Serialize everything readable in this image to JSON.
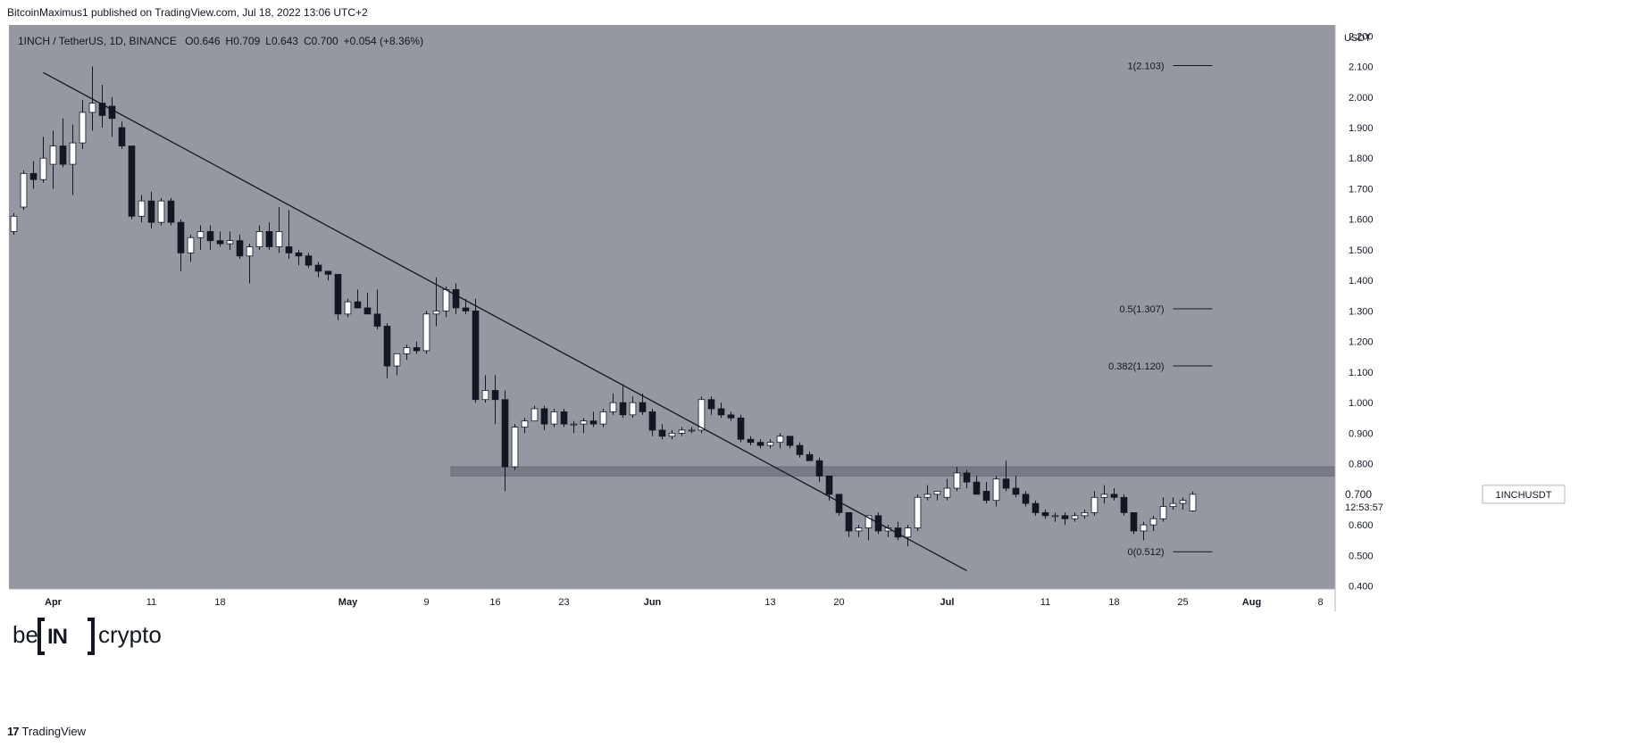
{
  "header": {
    "published": "BitcoinMaximus1 published on TradingView.com, Jul 18, 2022 13:06 UTC+2"
  },
  "footer": {
    "brand": "TradingView",
    "logo_glyph": "17"
  },
  "watermark": {
    "left": "be",
    "middle": "IN",
    "right": "crypto"
  },
  "colors": {
    "plot_background": "#9598a1",
    "candle_up": "#ffffff",
    "candle_down": "#131722",
    "wick": "#131722",
    "trendline": "#131722",
    "resistance_zone": "#787b86",
    "axis_background": "#ffffff",
    "text": "#131722"
  },
  "chart_data": {
    "type": "candlestick",
    "symbol_title": "1INCH / TetherUS, 1D, BINANCE",
    "ohlc_readout": [
      {
        "key": "O",
        "value": "0.646"
      },
      {
        "key": "H",
        "value": "0.709"
      },
      {
        "key": "L",
        "value": "0.643"
      },
      {
        "key": "C",
        "value": "0.700"
      },
      {
        "key": "",
        "value": "+0.054 (+8.36%)"
      }
    ],
    "y_axis": {
      "unit": "USDT",
      "ticks": [
        "2.200",
        "2.100",
        "2.000",
        "1.900",
        "1.800",
        "1.700",
        "1.600",
        "1.500",
        "1.400",
        "1.300",
        "1.200",
        "1.100",
        "1.000",
        "0.900",
        "0.800",
        "0.700",
        "0.600",
        "0.500",
        "0.400"
      ],
      "range": [
        0.39,
        2.23
      ]
    },
    "x_axis": {
      "start_date": "2022-03-28",
      "end_date": "2022-08-10",
      "ticks": [
        {
          "label": "Apr",
          "date": "2022-04-01",
          "bold": true
        },
        {
          "label": "11",
          "date": "2022-04-11",
          "bold": false
        },
        {
          "label": "18",
          "date": "2022-04-18",
          "bold": false
        },
        {
          "label": "May",
          "date": "2022-05-01",
          "bold": true
        },
        {
          "label": "9",
          "date": "2022-05-09",
          "bold": false
        },
        {
          "label": "16",
          "date": "2022-05-16",
          "bold": false
        },
        {
          "label": "23",
          "date": "2022-05-23",
          "bold": false
        },
        {
          "label": "Jun",
          "date": "2022-06-01",
          "bold": true
        },
        {
          "label": "13",
          "date": "2022-06-13",
          "bold": false
        },
        {
          "label": "20",
          "date": "2022-06-20",
          "bold": false
        },
        {
          "label": "Jul",
          "date": "2022-07-01",
          "bold": true
        },
        {
          "label": "11",
          "date": "2022-07-11",
          "bold": false
        },
        {
          "label": "18",
          "date": "2022-07-18",
          "bold": false
        },
        {
          "label": "25",
          "date": "2022-07-25",
          "bold": false
        },
        {
          "label": "Aug",
          "date": "2022-08-01",
          "bold": true
        },
        {
          "label": "8",
          "date": "2022-08-08",
          "bold": false
        }
      ]
    },
    "price_label": {
      "symbol": "1INCHUSDT",
      "price": "0.700",
      "countdown": "12:53:57"
    },
    "fib_levels": [
      {
        "label": "1(2.103)",
        "value": 2.103
      },
      {
        "label": "0.5(1.307)",
        "value": 1.307
      },
      {
        "label": "0.382(1.120)",
        "value": 1.12
      },
      {
        "label": "0(0.512)",
        "value": 0.512
      }
    ],
    "fib_line_range": {
      "start": "2022-07-24",
      "end": "2022-07-28"
    },
    "trendline": {
      "start": {
        "date": "2022-03-31",
        "value": 2.08
      },
      "end": {
        "date": "2022-07-03",
        "value": 0.45
      }
    },
    "resistance_zone": {
      "start_date": "2022-05-12",
      "end_date": "2022-08-10",
      "low": 0.76,
      "high": 0.79
    },
    "candles": [
      {
        "date": "2022-03-28",
        "o": 1.56,
        "h": 1.62,
        "l": 1.55,
        "c": 1.61
      },
      {
        "date": "2022-03-29",
        "o": 1.64,
        "h": 1.76,
        "l": 1.63,
        "c": 1.75
      },
      {
        "date": "2022-03-30",
        "o": 1.75,
        "h": 1.79,
        "l": 1.7,
        "c": 1.73
      },
      {
        "date": "2022-03-31",
        "o": 1.73,
        "h": 1.87,
        "l": 1.72,
        "c": 1.8
      },
      {
        "date": "2022-04-01",
        "o": 1.78,
        "h": 1.89,
        "l": 1.7,
        "c": 1.84
      },
      {
        "date": "2022-04-02",
        "o": 1.84,
        "h": 1.93,
        "l": 1.77,
        "c": 1.78
      },
      {
        "date": "2022-04-03",
        "o": 1.78,
        "h": 1.91,
        "l": 1.68,
        "c": 1.85
      },
      {
        "date": "2022-04-04",
        "o": 1.85,
        "h": 1.99,
        "l": 1.83,
        "c": 1.95
      },
      {
        "date": "2022-04-05",
        "o": 1.95,
        "h": 2.1,
        "l": 1.89,
        "c": 1.98
      },
      {
        "date": "2022-04-06",
        "o": 1.98,
        "h": 2.04,
        "l": 1.9,
        "c": 1.94
      },
      {
        "date": "2022-04-07",
        "o": 1.97,
        "h": 2.0,
        "l": 1.87,
        "c": 1.93
      },
      {
        "date": "2022-04-08",
        "o": 1.9,
        "h": 1.92,
        "l": 1.83,
        "c": 1.84
      },
      {
        "date": "2022-04-09",
        "o": 1.84,
        "h": 1.84,
        "l": 1.6,
        "c": 1.61
      },
      {
        "date": "2022-04-10",
        "o": 1.61,
        "h": 1.68,
        "l": 1.59,
        "c": 1.66
      },
      {
        "date": "2022-04-11",
        "o": 1.66,
        "h": 1.69,
        "l": 1.57,
        "c": 1.59
      },
      {
        "date": "2022-04-12",
        "o": 1.59,
        "h": 1.67,
        "l": 1.58,
        "c": 1.66
      },
      {
        "date": "2022-04-13",
        "o": 1.66,
        "h": 1.67,
        "l": 1.58,
        "c": 1.59
      },
      {
        "date": "2022-04-14",
        "o": 1.59,
        "h": 1.6,
        "l": 1.43,
        "c": 1.49
      },
      {
        "date": "2022-04-15",
        "o": 1.49,
        "h": 1.55,
        "l": 1.46,
        "c": 1.54
      },
      {
        "date": "2022-04-16",
        "o": 1.54,
        "h": 1.58,
        "l": 1.5,
        "c": 1.56
      },
      {
        "date": "2022-04-17",
        "o": 1.56,
        "h": 1.58,
        "l": 1.5,
        "c": 1.53
      },
      {
        "date": "2022-04-18",
        "o": 1.53,
        "h": 1.56,
        "l": 1.51,
        "c": 1.52
      },
      {
        "date": "2022-04-19",
        "o": 1.52,
        "h": 1.56,
        "l": 1.5,
        "c": 1.53
      },
      {
        "date": "2022-04-20",
        "o": 1.53,
        "h": 1.55,
        "l": 1.47,
        "c": 1.48
      },
      {
        "date": "2022-04-21",
        "o": 1.48,
        "h": 1.52,
        "l": 1.39,
        "c": 1.51
      },
      {
        "date": "2022-04-22",
        "o": 1.51,
        "h": 1.58,
        "l": 1.5,
        "c": 1.56
      },
      {
        "date": "2022-04-23",
        "o": 1.56,
        "h": 1.59,
        "l": 1.5,
        "c": 1.51
      },
      {
        "date": "2022-04-24",
        "o": 1.51,
        "h": 1.64,
        "l": 1.49,
        "c": 1.56
      },
      {
        "date": "2022-04-25",
        "o": 1.51,
        "h": 1.63,
        "l": 1.47,
        "c": 1.49
      },
      {
        "date": "2022-04-26",
        "o": 1.49,
        "h": 1.5,
        "l": 1.45,
        "c": 1.48
      },
      {
        "date": "2022-04-27",
        "o": 1.48,
        "h": 1.49,
        "l": 1.44,
        "c": 1.45
      },
      {
        "date": "2022-04-28",
        "o": 1.45,
        "h": 1.46,
        "l": 1.41,
        "c": 1.43
      },
      {
        "date": "2022-04-29",
        "o": 1.43,
        "h": 1.43,
        "l": 1.4,
        "c": 1.42
      },
      {
        "date": "2022-04-30",
        "o": 1.42,
        "h": 1.42,
        "l": 1.27,
        "c": 1.29
      },
      {
        "date": "2022-05-01",
        "o": 1.29,
        "h": 1.34,
        "l": 1.28,
        "c": 1.33
      },
      {
        "date": "2022-05-02",
        "o": 1.33,
        "h": 1.37,
        "l": 1.31,
        "c": 1.31
      },
      {
        "date": "2022-05-03",
        "o": 1.31,
        "h": 1.36,
        "l": 1.29,
        "c": 1.29
      },
      {
        "date": "2022-05-04",
        "o": 1.29,
        "h": 1.37,
        "l": 1.24,
        "c": 1.25
      },
      {
        "date": "2022-05-05",
        "o": 1.25,
        "h": 1.26,
        "l": 1.08,
        "c": 1.12
      },
      {
        "date": "2022-05-06",
        "o": 1.12,
        "h": 1.16,
        "l": 1.09,
        "c": 1.16
      },
      {
        "date": "2022-05-07",
        "o": 1.16,
        "h": 1.19,
        "l": 1.14,
        "c": 1.18
      },
      {
        "date": "2022-05-08",
        "o": 1.18,
        "h": 1.2,
        "l": 1.16,
        "c": 1.17
      },
      {
        "date": "2022-05-09",
        "o": 1.17,
        "h": 1.3,
        "l": 1.16,
        "c": 1.29
      },
      {
        "date": "2022-05-10",
        "o": 1.29,
        "h": 1.41,
        "l": 1.25,
        "c": 1.3
      },
      {
        "date": "2022-05-11",
        "o": 1.3,
        "h": 1.38,
        "l": 1.28,
        "c": 1.37
      },
      {
        "date": "2022-05-12",
        "o": 1.37,
        "h": 1.39,
        "l": 1.29,
        "c": 1.31
      },
      {
        "date": "2022-05-13",
        "o": 1.31,
        "h": 1.34,
        "l": 1.29,
        "c": 1.3
      },
      {
        "date": "2022-05-14",
        "o": 1.3,
        "h": 1.34,
        "l": 1.0,
        "c": 1.01
      },
      {
        "date": "2022-05-15",
        "o": 1.01,
        "h": 1.09,
        "l": 1.0,
        "c": 1.04
      },
      {
        "date": "2022-05-16",
        "o": 1.04,
        "h": 1.09,
        "l": 0.93,
        "c": 1.01
      },
      {
        "date": "2022-05-17",
        "o": 1.01,
        "h": 1.04,
        "l": 0.71,
        "c": 0.79
      },
      {
        "date": "2022-05-18",
        "o": 0.79,
        "h": 0.93,
        "l": 0.78,
        "c": 0.92
      },
      {
        "date": "2022-05-19",
        "o": 0.92,
        "h": 0.95,
        "l": 0.9,
        "c": 0.94
      },
      {
        "date": "2022-05-20",
        "o": 0.94,
        "h": 0.99,
        "l": 0.94,
        "c": 0.98
      },
      {
        "date": "2022-05-21",
        "o": 0.98,
        "h": 0.99,
        "l": 0.91,
        "c": 0.93
      },
      {
        "date": "2022-05-22",
        "o": 0.93,
        "h": 0.98,
        "l": 0.92,
        "c": 0.97
      },
      {
        "date": "2022-05-23",
        "o": 0.97,
        "h": 0.98,
        "l": 0.92,
        "c": 0.93
      },
      {
        "date": "2022-05-24",
        "o": 0.93,
        "h": 0.94,
        "l": 0.9,
        "c": 0.93
      },
      {
        "date": "2022-05-25",
        "o": 0.93,
        "h": 0.95,
        "l": 0.9,
        "c": 0.94
      },
      {
        "date": "2022-05-26",
        "o": 0.94,
        "h": 0.97,
        "l": 0.92,
        "c": 0.93
      },
      {
        "date": "2022-05-27",
        "o": 0.93,
        "h": 0.98,
        "l": 0.92,
        "c": 0.97
      },
      {
        "date": "2022-05-28",
        "o": 0.97,
        "h": 1.03,
        "l": 0.96,
        "c": 1.0
      },
      {
        "date": "2022-05-29",
        "o": 1.0,
        "h": 1.06,
        "l": 0.95,
        "c": 0.96
      },
      {
        "date": "2022-05-30",
        "o": 0.96,
        "h": 1.02,
        "l": 0.95,
        "c": 1.0
      },
      {
        "date": "2022-05-31",
        "o": 1.0,
        "h": 1.03,
        "l": 0.96,
        "c": 0.97
      },
      {
        "date": "2022-06-01",
        "o": 0.97,
        "h": 0.98,
        "l": 0.89,
        "c": 0.91
      },
      {
        "date": "2022-06-02",
        "o": 0.91,
        "h": 0.93,
        "l": 0.88,
        "c": 0.89
      },
      {
        "date": "2022-06-03",
        "o": 0.89,
        "h": 0.91,
        "l": 0.88,
        "c": 0.9
      },
      {
        "date": "2022-06-04",
        "o": 0.9,
        "h": 0.92,
        "l": 0.89,
        "c": 0.91
      },
      {
        "date": "2022-06-05",
        "o": 0.91,
        "h": 0.92,
        "l": 0.9,
        "c": 0.91
      },
      {
        "date": "2022-06-06",
        "o": 0.91,
        "h": 1.02,
        "l": 0.9,
        "c": 1.01
      },
      {
        "date": "2022-06-07",
        "o": 1.01,
        "h": 1.02,
        "l": 0.96,
        "c": 0.98
      },
      {
        "date": "2022-06-08",
        "o": 0.98,
        "h": 1.0,
        "l": 0.95,
        "c": 0.96
      },
      {
        "date": "2022-06-09",
        "o": 0.96,
        "h": 0.97,
        "l": 0.94,
        "c": 0.95
      },
      {
        "date": "2022-06-10",
        "o": 0.95,
        "h": 0.96,
        "l": 0.87,
        "c": 0.88
      },
      {
        "date": "2022-06-11",
        "o": 0.88,
        "h": 0.89,
        "l": 0.86,
        "c": 0.87
      },
      {
        "date": "2022-06-12",
        "o": 0.87,
        "h": 0.88,
        "l": 0.85,
        "c": 0.86
      },
      {
        "date": "2022-06-13",
        "o": 0.86,
        "h": 0.88,
        "l": 0.85,
        "c": 0.87
      },
      {
        "date": "2022-06-14",
        "o": 0.87,
        "h": 0.9,
        "l": 0.85,
        "c": 0.89
      },
      {
        "date": "2022-06-15",
        "o": 0.89,
        "h": 0.89,
        "l": 0.85,
        "c": 0.86
      },
      {
        "date": "2022-06-16",
        "o": 0.86,
        "h": 0.87,
        "l": 0.82,
        "c": 0.83
      },
      {
        "date": "2022-06-17",
        "o": 0.83,
        "h": 0.84,
        "l": 0.81,
        "c": 0.81
      },
      {
        "date": "2022-06-18",
        "o": 0.81,
        "h": 0.82,
        "l": 0.74,
        "c": 0.76
      },
      {
        "date": "2022-06-19",
        "o": 0.76,
        "h": 0.76,
        "l": 0.68,
        "c": 0.7
      },
      {
        "date": "2022-06-20",
        "o": 0.7,
        "h": 0.7,
        "l": 0.63,
        "c": 0.64
      },
      {
        "date": "2022-06-21",
        "o": 0.64,
        "h": 0.64,
        "l": 0.56,
        "c": 0.58
      },
      {
        "date": "2022-06-22",
        "o": 0.58,
        "h": 0.6,
        "l": 0.56,
        "c": 0.59
      },
      {
        "date": "2022-06-23",
        "o": 0.59,
        "h": 0.63,
        "l": 0.55,
        "c": 0.63
      },
      {
        "date": "2022-06-24",
        "o": 0.63,
        "h": 0.64,
        "l": 0.57,
        "c": 0.58
      },
      {
        "date": "2022-06-25",
        "o": 0.58,
        "h": 0.6,
        "l": 0.56,
        "c": 0.59
      },
      {
        "date": "2022-06-26",
        "o": 0.59,
        "h": 0.61,
        "l": 0.55,
        "c": 0.56
      },
      {
        "date": "2022-06-27",
        "o": 0.56,
        "h": 0.6,
        "l": 0.53,
        "c": 0.59
      },
      {
        "date": "2022-06-28",
        "o": 0.59,
        "h": 0.7,
        "l": 0.58,
        "c": 0.69
      },
      {
        "date": "2022-06-29",
        "o": 0.69,
        "h": 0.73,
        "l": 0.68,
        "c": 0.7
      },
      {
        "date": "2022-06-30",
        "o": 0.7,
        "h": 0.71,
        "l": 0.68,
        "c": 0.71
      },
      {
        "date": "2022-07-01",
        "o": 0.69,
        "h": 0.75,
        "l": 0.68,
        "c": 0.72
      },
      {
        "date": "2022-07-02",
        "o": 0.72,
        "h": 0.79,
        "l": 0.71,
        "c": 0.77
      },
      {
        "date": "2022-07-03",
        "o": 0.77,
        "h": 0.78,
        "l": 0.72,
        "c": 0.74
      },
      {
        "date": "2022-07-04",
        "o": 0.74,
        "h": 0.76,
        "l": 0.7,
        "c": 0.7
      },
      {
        "date": "2022-07-05",
        "o": 0.71,
        "h": 0.74,
        "l": 0.67,
        "c": 0.68
      },
      {
        "date": "2022-07-06",
        "o": 0.68,
        "h": 0.76,
        "l": 0.66,
        "c": 0.75
      },
      {
        "date": "2022-07-07",
        "o": 0.75,
        "h": 0.81,
        "l": 0.71,
        "c": 0.72
      },
      {
        "date": "2022-07-08",
        "o": 0.72,
        "h": 0.76,
        "l": 0.69,
        "c": 0.7
      },
      {
        "date": "2022-07-09",
        "o": 0.7,
        "h": 0.71,
        "l": 0.66,
        "c": 0.67
      },
      {
        "date": "2022-07-10",
        "o": 0.67,
        "h": 0.68,
        "l": 0.63,
        "c": 0.64
      },
      {
        "date": "2022-07-11",
        "o": 0.64,
        "h": 0.65,
        "l": 0.62,
        "c": 0.63
      },
      {
        "date": "2022-07-12",
        "o": 0.63,
        "h": 0.64,
        "l": 0.61,
        "c": 0.63
      },
      {
        "date": "2022-07-13",
        "o": 0.63,
        "h": 0.64,
        "l": 0.6,
        "c": 0.62
      },
      {
        "date": "2022-07-14",
        "o": 0.62,
        "h": 0.64,
        "l": 0.61,
        "c": 0.63
      },
      {
        "date": "2022-07-15",
        "o": 0.63,
        "h": 0.65,
        "l": 0.62,
        "c": 0.64
      },
      {
        "date": "2022-07-16",
        "o": 0.64,
        "h": 0.71,
        "l": 0.63,
        "c": 0.69
      },
      {
        "date": "2022-07-17",
        "o": 0.69,
        "h": 0.73,
        "l": 0.67,
        "c": 0.7
      },
      {
        "date": "2022-07-18",
        "o": 0.7,
        "h": 0.72,
        "l": 0.68,
        "c": 0.69
      },
      {
        "date": "2022-07-19",
        "o": 0.69,
        "h": 0.7,
        "l": 0.63,
        "c": 0.64
      },
      {
        "date": "2022-07-20",
        "o": 0.64,
        "h": 0.64,
        "l": 0.57,
        "c": 0.58
      },
      {
        "date": "2022-07-21",
        "o": 0.58,
        "h": 0.61,
        "l": 0.55,
        "c": 0.6
      },
      {
        "date": "2022-07-22",
        "o": 0.6,
        "h": 0.63,
        "l": 0.58,
        "c": 0.62
      },
      {
        "date": "2022-07-23",
        "o": 0.62,
        "h": 0.69,
        "l": 0.61,
        "c": 0.66
      },
      {
        "date": "2022-07-24",
        "o": 0.66,
        "h": 0.69,
        "l": 0.65,
        "c": 0.67
      },
      {
        "date": "2022-07-25",
        "o": 0.67,
        "h": 0.69,
        "l": 0.65,
        "c": 0.68
      },
      {
        "date": "2022-07-26",
        "o": 0.646,
        "h": 0.709,
        "l": 0.643,
        "c": 0.7
      }
    ]
  }
}
